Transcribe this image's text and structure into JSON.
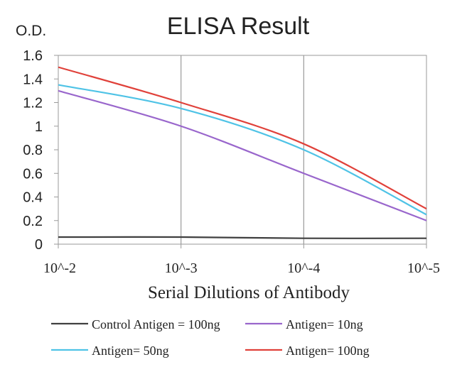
{
  "chart_data": {
    "type": "line",
    "title": "ELISA Result",
    "ylabel": "O.D.",
    "xlabel": "Serial Dilutions of Antibody",
    "x": [
      "10^-2",
      "10^-3",
      "10^-4",
      "10^-5"
    ],
    "ylim": [
      0,
      1.6
    ],
    "yticks": [
      "0",
      "0.2",
      "0.4",
      "0.6",
      "0.8",
      "1",
      "1.2",
      "1.4",
      "1.6"
    ],
    "grid": "vertical",
    "legend_position": "bottom",
    "series": [
      {
        "name": "Control Antigen = 100ng",
        "color": "#404040",
        "values": [
          0.06,
          0.06,
          0.05,
          0.05
        ]
      },
      {
        "name": "Antigen= 10ng",
        "color": "#9966cc",
        "values": [
          1.3,
          1.0,
          0.6,
          0.2
        ]
      },
      {
        "name": "Antigen= 50ng",
        "color": "#4fc3e6",
        "values": [
          1.35,
          1.15,
          0.8,
          0.25
        ]
      },
      {
        "name": "Antigen= 100ng",
        "color": "#e0413a",
        "values": [
          1.5,
          1.2,
          0.85,
          0.3
        ]
      }
    ]
  }
}
